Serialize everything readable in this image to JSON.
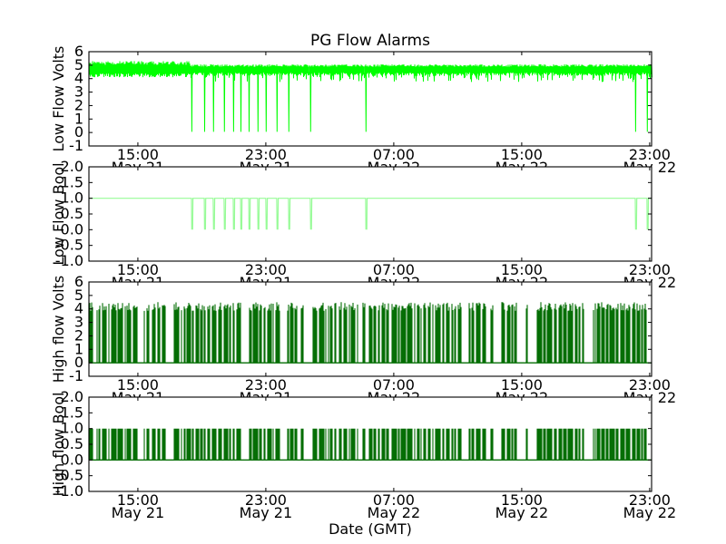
{
  "title": "PG Flow Alarms",
  "xlabel": "Date (GMT)",
  "figure": {
    "background": "#ffffff",
    "frame_color": "#000000"
  },
  "x_axis": {
    "hours_span": 35.18,
    "tick_hours": [
      3.06,
      11.06,
      19.06,
      27.06,
      35.06
    ],
    "tick_times": [
      "15:00",
      "23:00",
      "07:00",
      "15:00",
      "23:00"
    ],
    "tick_dates": [
      "May 21",
      "May 21",
      "May 22",
      "May 22",
      "May 22"
    ]
  },
  "chart_data": [
    {
      "type": "line",
      "ylabel": "Low Flow Volts",
      "color": "#00ff00",
      "ylim": [
        -1,
        6
      ],
      "yticks": [
        "6",
        "5",
        "4",
        "3",
        "2",
        "1",
        "0",
        "-1"
      ],
      "series": {
        "kind": "noisy-band",
        "description": "Sensor voltage noise band ~4.2-5.3 V, denser noise before hour 6.4, brief dips to ~3.7 V after, with sharp dropouts to 0 V",
        "band_low_volts": 4.2,
        "band_high_volts": 5.3,
        "early_noise_until_hour": 6.35,
        "dropout_volts": 0,
        "dropout_hours": [
          6.41,
          7.21,
          7.77,
          8.45,
          9.02,
          9.48,
          9.99,
          10.55,
          11.06,
          11.74,
          12.48,
          13.84,
          17.3,
          34.16,
          34.89
        ]
      }
    },
    {
      "type": "line",
      "ylabel": "Low Flow Bool",
      "color": "#98fb98",
      "ylim": [
        -1,
        2
      ],
      "yticks": [
        "2.0",
        "1.5",
        "1.0",
        "0.5",
        "0.0",
        "-0.5",
        "-1.0"
      ],
      "series": {
        "kind": "constant-with-dropouts",
        "description": "Boolean alarm state held at 1.0 with momentary drops to 0.0 matching the low-flow voltage dropouts",
        "level": 1.0,
        "dropout_level": 0.0,
        "dropout_hours": [
          6.41,
          7.21,
          7.77,
          8.45,
          9.02,
          9.48,
          9.99,
          10.55,
          11.06,
          11.74,
          12.48,
          13.84,
          17.3,
          34.16,
          34.89
        ]
      }
    },
    {
      "type": "line",
      "ylabel": "High flow Volts",
      "color": "#056e05",
      "ylim": [
        -1,
        6
      ],
      "yticks": [
        "6",
        "5",
        "4",
        "3",
        "2",
        "1",
        "0",
        "-1"
      ],
      "series": {
        "kind": "pulse-train",
        "description": "Rapidly toggling voltage between 0 V and ~3.9-4.5 V across the whole time range with short random off gaps",
        "high_min_volts": 3.85,
        "high_max_volts": 4.5,
        "low_volts": 0
      }
    },
    {
      "type": "line",
      "ylabel": "High flow Bool",
      "color": "#056e05",
      "ylim": [
        -1,
        2
      ],
      "yticks": [
        "2.0",
        "1.5",
        "1.0",
        "0.5",
        "0.0",
        "-0.5",
        "-1.0"
      ],
      "series": {
        "kind": "pulse-train",
        "description": "Boolean alarm toggling between 0.0 and 1.0 with the same on/off pattern as the high-flow voltage",
        "high_min_volts": 1,
        "high_max_volts": 1,
        "low_volts": 0
      }
    }
  ]
}
